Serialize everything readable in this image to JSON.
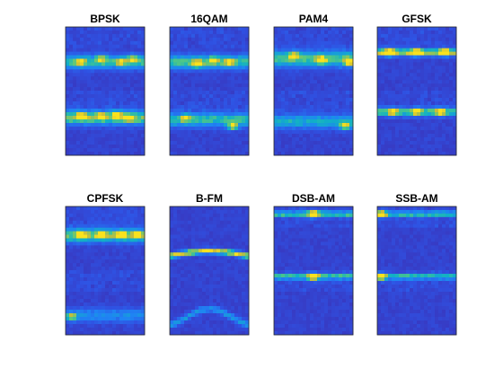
{
  "figure": {
    "background": "#ffffff"
  },
  "chart_data": {
    "type": "heatmap",
    "colormap": "parula",
    "colorscale": [
      "#3e26a8",
      "#2f52e3",
      "#1f83f4",
      "#11b0c6",
      "#57c97e",
      "#c8bd3a",
      "#f9e21e"
    ],
    "grid": false,
    "axes_ticks": false,
    "layout": "2x4 grid of subplots, each split into two stacked scalogram images",
    "subplots": [
      {
        "title": "BPSK",
        "upper": {
          "band_center": 0.55,
          "band_width": 0.1,
          "band_intensity": 0.6,
          "blobs": [
            [
              0.2,
              0.55,
              0.55
            ],
            [
              0.45,
              0.5,
              0.6
            ],
            [
              0.7,
              0.55,
              0.55
            ],
            [
              0.85,
              0.5,
              0.5
            ]
          ]
        },
        "lower": {
          "band_center": 0.42,
          "band_width": 0.1,
          "band_intensity": 0.7,
          "blobs": [
            [
              0.2,
              0.4,
              0.85
            ],
            [
              0.45,
              0.4,
              0.8
            ],
            [
              0.65,
              0.38,
              0.85
            ],
            [
              0.8,
              0.42,
              0.7
            ]
          ]
        }
      },
      {
        "title": "16QAM",
        "upper": {
          "band_center": 0.55,
          "band_width": 0.1,
          "band_intensity": 0.6,
          "blobs": [
            [
              0.35,
              0.58,
              0.95
            ],
            [
              0.55,
              0.52,
              0.55
            ],
            [
              0.75,
              0.55,
              0.6
            ]
          ]
        },
        "lower": {
          "band_center": 0.45,
          "band_width": 0.1,
          "band_intensity": 0.55,
          "blobs": [
            [
              0.2,
              0.42,
              0.6
            ],
            [
              0.8,
              0.55,
              0.85
            ]
          ]
        }
      },
      {
        "title": "PAM4",
        "upper": {
          "band_center": 0.5,
          "band_width": 0.12,
          "band_intensity": 0.6,
          "blobs": [
            [
              0.25,
              0.45,
              0.75
            ],
            [
              0.6,
              0.52,
              0.9
            ],
            [
              0.95,
              0.55,
              0.9
            ]
          ]
        },
        "lower": {
          "band_center": 0.48,
          "band_width": 0.1,
          "band_intensity": 0.45,
          "blobs": [
            [
              0.9,
              0.55,
              0.7
            ]
          ]
        }
      },
      {
        "title": "GFSK",
        "upper": {
          "band_center": 0.4,
          "band_width": 0.05,
          "band_intensity": 0.85,
          "blobs": [
            [
              0.15,
              0.4,
              1.0
            ],
            [
              0.5,
              0.4,
              0.95
            ],
            [
              0.85,
              0.4,
              0.9
            ]
          ]
        },
        "lower": {
          "band_center": 0.33,
          "band_width": 0.06,
          "band_intensity": 0.6,
          "blobs": [
            [
              0.2,
              0.33,
              0.7
            ],
            [
              0.5,
              0.33,
              0.6
            ],
            [
              0.8,
              0.33,
              0.65
            ]
          ]
        }
      },
      {
        "title": "CPFSK",
        "upper": {
          "band_center": 0.45,
          "band_width": 0.1,
          "band_intensity": 0.7,
          "blobs": [
            [
              0.2,
              0.45,
              0.9
            ],
            [
              0.45,
              0.45,
              0.85
            ],
            [
              0.7,
              0.45,
              0.85
            ],
            [
              0.9,
              0.45,
              0.75
            ]
          ]
        },
        "lower": {
          "band_center": 0.7,
          "band_width": 0.1,
          "band_intensity": 0.3,
          "blobs": [
            [
              0.08,
              0.72,
              0.55
            ]
          ]
        }
      },
      {
        "title": "B-FM",
        "upper": {
          "curve": true,
          "band_center": 0.78,
          "band_width": 0.04,
          "band_intensity": 1.0,
          "blobs": []
        },
        "lower": {
          "arc": true,
          "band_center": 0.85,
          "band_width": 0.05,
          "band_intensity": 0.35,
          "blobs": []
        }
      },
      {
        "title": "DSB-AM",
        "upper": {
          "band_center": 0.12,
          "band_width": 0.04,
          "band_intensity": 0.6,
          "blobs": [
            [
              0.5,
              0.12,
              1.0
            ]
          ]
        },
        "lower": {
          "band_center": 0.1,
          "band_width": 0.04,
          "band_intensity": 0.6,
          "blobs": [
            [
              0.5,
              0.1,
              0.95
            ]
          ]
        }
      },
      {
        "title": "SSB-AM",
        "upper": {
          "band_center": 0.12,
          "band_width": 0.04,
          "band_intensity": 0.55,
          "blobs": [
            [
              0.05,
              0.12,
              0.9
            ]
          ]
        },
        "lower": {
          "band_center": 0.1,
          "band_width": 0.04,
          "band_intensity": 0.55,
          "blobs": [
            [
              0.05,
              0.1,
              0.85
            ]
          ]
        }
      }
    ]
  }
}
